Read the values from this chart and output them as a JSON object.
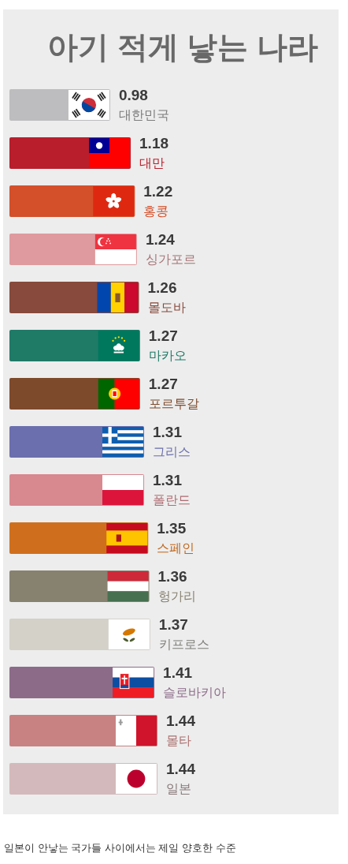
{
  "chart_data": {
    "type": "bar",
    "orientation": "horizontal",
    "title": "아기 적게 낳는 나라",
    "categories": [
      "대한민국",
      "대만",
      "홍콩",
      "싱가포르",
      "몰도바",
      "마카오",
      "포르투갈",
      "그리스",
      "폴란드",
      "스페인",
      "헝가리",
      "키프로스",
      "슬로바키아",
      "몰타",
      "일본"
    ],
    "values": [
      0.98,
      1.18,
      1.22,
      1.24,
      1.26,
      1.27,
      1.27,
      1.31,
      1.31,
      1.35,
      1.36,
      1.37,
      1.41,
      1.44,
      1.44
    ],
    "colors": [
      "#bdbdbf",
      "#b81e2c",
      "#d4502a",
      "#de9a9e",
      "#874a3c",
      "#1f7a66",
      "#7d4a2c",
      "#6b6fad",
      "#d8888f",
      "#cf6f1e",
      "#878170",
      "#d3d1c8",
      "#8c6b89",
      "#c88282",
      "#d3b9bb"
    ],
    "data_labels": true,
    "annotations": [
      "일본이 안낳는 국가들 사이에서는 제일 양호한 수준"
    ]
  }
}
